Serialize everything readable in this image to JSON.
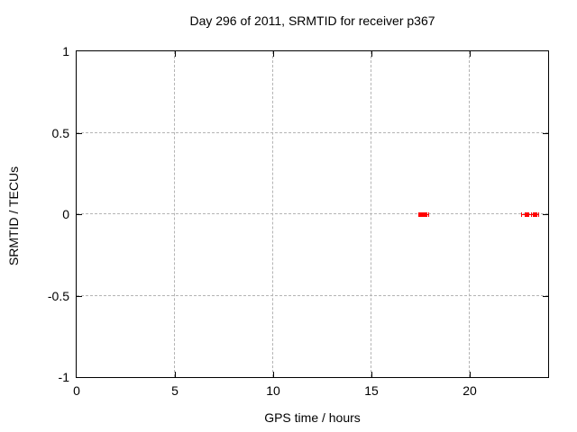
{
  "colors": {
    "background": "#ffffff",
    "border": "#000000",
    "grid": "#b4b4b4",
    "series_red": "#ff0000",
    "text": "#000000"
  },
  "chart_data": {
    "type": "scatter",
    "title": "Day 296 of 2011, SRMTID for receiver p367",
    "xlabel": "GPS time / hours",
    "ylabel": "SRMTID / TECUs",
    "xlim": [
      0,
      24
    ],
    "ylim": [
      -1,
      1
    ],
    "grid": true,
    "legend": "none",
    "xticks": [
      {
        "v": 0,
        "label": "0"
      },
      {
        "v": 5,
        "label": "5"
      },
      {
        "v": 10,
        "label": "10"
      },
      {
        "v": 15,
        "label": "15"
      },
      {
        "v": 20,
        "label": "20"
      }
    ],
    "yticks": [
      {
        "v": 1,
        "label": "1"
      },
      {
        "v": 0.5,
        "label": "0.5"
      },
      {
        "v": 0,
        "label": "0"
      },
      {
        "v": -0.5,
        "label": "-0.5"
      },
      {
        "v": -1,
        "label": "-1"
      }
    ],
    "series": [
      {
        "name": "SRMTID",
        "color": "#ff0000",
        "marker": "filled-square",
        "error_bars": "x",
        "points": [
          {
            "x": 17.55,
            "y": 0,
            "xerr_low": 17.39,
            "xerr_high": 17.72
          },
          {
            "x": 17.71,
            "y": 0,
            "xerr_low": 17.55,
            "xerr_high": 17.88
          },
          {
            "x": 22.88,
            "y": 0,
            "xerr_low": 22.61,
            "xerr_high": 23.11
          },
          {
            "x": 23.31,
            "y": 0,
            "xerr_low": 23.13,
            "xerr_high": 23.5
          }
        ]
      }
    ]
  }
}
